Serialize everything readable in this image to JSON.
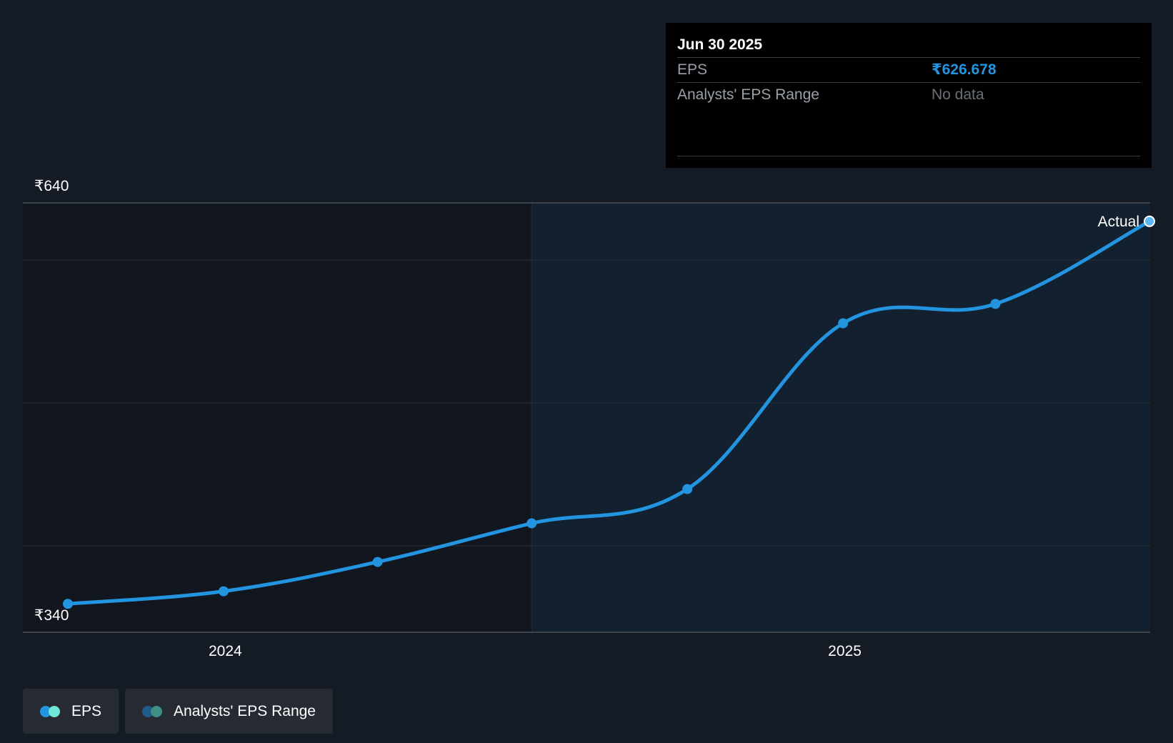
{
  "tooltip": {
    "date": "Jun 30 2025",
    "rows": [
      {
        "label": "EPS",
        "value": "₹626.678"
      },
      {
        "label": "Analysts' EPS Range",
        "value": "No data"
      }
    ]
  },
  "legend": [
    {
      "label": "EPS",
      "colors": [
        "#2394df",
        "#6ee7d8"
      ]
    },
    {
      "label": "Analysts' EPS Range",
      "colors": [
        "#1f5b87",
        "#3f8f86"
      ]
    }
  ],
  "chart_data": {
    "type": "line",
    "ytick_labels": {
      "top": "₹640",
      "bottom": "₹340"
    },
    "ylim": [
      340,
      640
    ],
    "xtick_labels": [
      "2024",
      "2025"
    ],
    "xticks": [
      "2024-01-01",
      "2025-01-01"
    ],
    "x_range": [
      "2023-09-30",
      "2025-06-30"
    ],
    "forecast_region_start": "2024-06-30",
    "end_label": "Actual",
    "grid": "horizontal",
    "colors": {
      "line": "#2394df",
      "past_bg": "#12161e",
      "future_bg": "#13202f"
    },
    "series": [
      {
        "name": "EPS",
        "points": [
          {
            "x": "2023-09-30",
            "y": 350.2
          },
          {
            "x": "2023-12-31",
            "y": 359.3
          },
          {
            "x": "2024-03-31",
            "y": 380.5
          },
          {
            "x": "2024-06-30",
            "y": 408.4
          },
          {
            "x": "2024-09-30",
            "y": 433.2
          },
          {
            "x": "2024-12-31",
            "y": 553.0
          },
          {
            "x": "2025-03-31",
            "y": 567.0
          },
          {
            "x": "2025-06-30",
            "y": 626.678
          }
        ]
      }
    ]
  }
}
